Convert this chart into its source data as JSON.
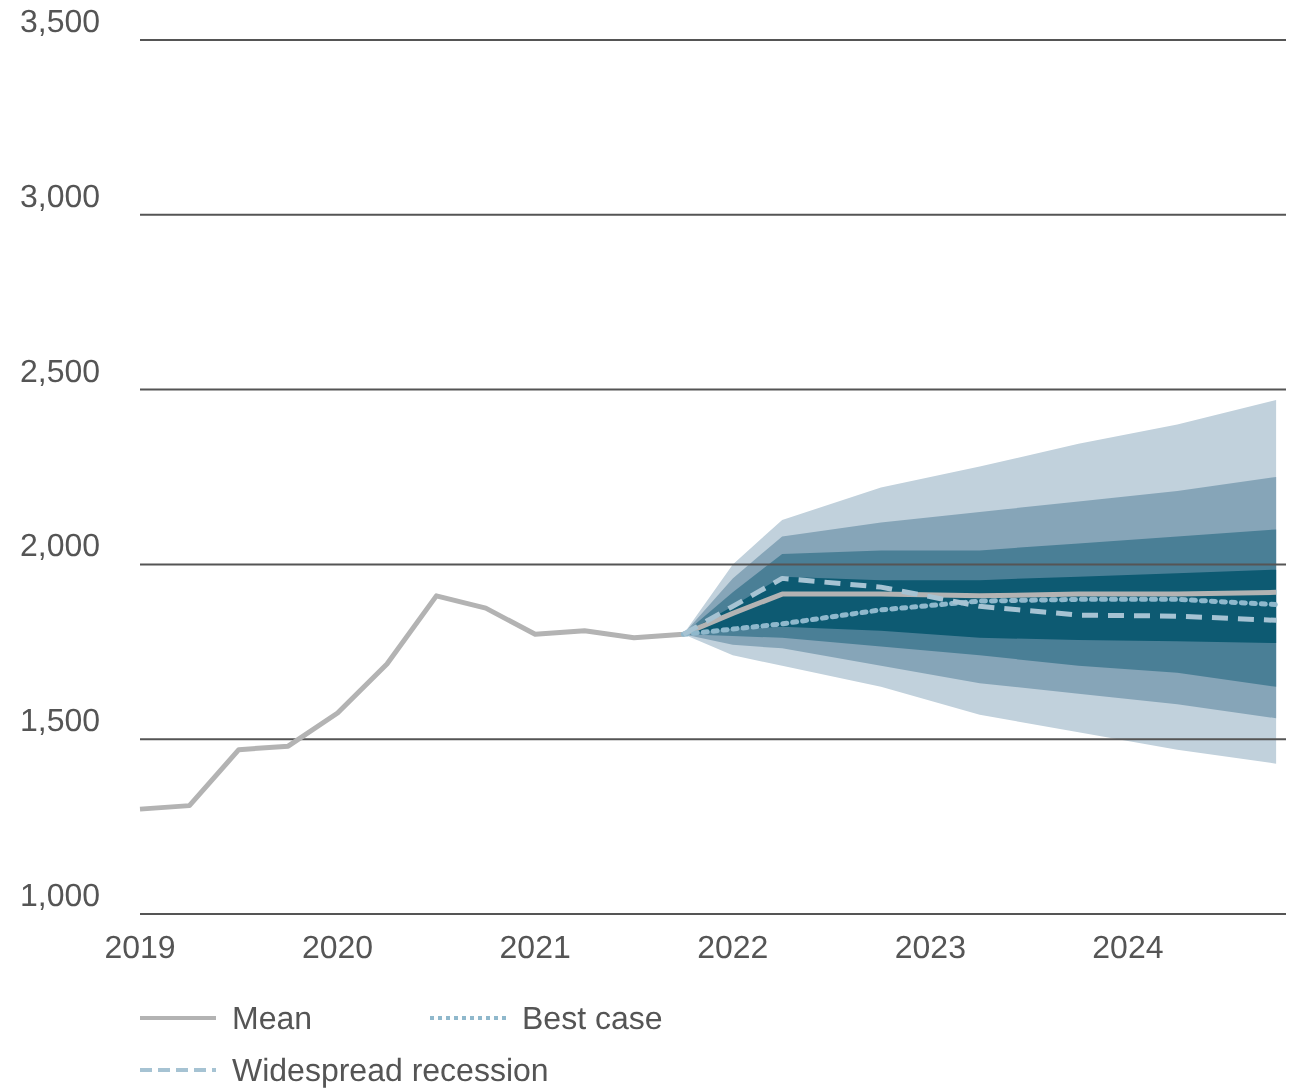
{
  "chart_data": {
    "type": "line",
    "xlim": [
      2019,
      2024.8
    ],
    "ylim": [
      1000,
      3500
    ],
    "xticks": [
      2019,
      2020,
      2021,
      2022,
      2023,
      2024
    ],
    "yticks": [
      {
        "value": 1000,
        "label": "1,000"
      },
      {
        "value": 1500,
        "label": "1,500"
      },
      {
        "value": 2000,
        "label": "2,000"
      },
      {
        "value": 2500,
        "label": "2,500"
      },
      {
        "value": 3000,
        "label": "3,000"
      },
      {
        "value": 3500,
        "label": "3,500"
      }
    ],
    "grid": "y",
    "legend": "bottom",
    "series": [
      {
        "type": "line",
        "color": "#c1d1dc",
        "x": [
          2021.75,
          2022,
          2022.25,
          2022.75,
          2023.25,
          2023.75,
          2024.25,
          2024.75
        ],
        "values": [
          null,
          null,
          null,
          null,
          null,
          null,
          null,
          null
        ],
        "lower": [
          1800,
          1740,
          1710,
          1650,
          1570,
          1520,
          1470,
          1430
        ],
        "upper": [
          1800,
          2000,
          2127,
          2220,
          2280,
          2345,
          2400,
          2470
        ]
      },
      {
        "type": "line",
        "color": "#86a5b8",
        "x": [
          2021.75,
          2022,
          2022.25,
          2022.75,
          2023.25,
          2023.75,
          2024.25,
          2024.75
        ],
        "values": [
          null,
          null,
          null,
          null,
          null,
          null,
          null,
          null
        ],
        "lower": [
          1800,
          1770,
          1760,
          1710,
          1660,
          1630,
          1600,
          1560
        ],
        "upper": [
          1800,
          1960,
          2080,
          2120,
          2150,
          2180,
          2210,
          2250
        ]
      },
      {
        "type": "line",
        "color": "#4a7f96",
        "x": [
          2021.75,
          2022,
          2022.25,
          2022.75,
          2023.25,
          2023.75,
          2024.25,
          2024.75
        ],
        "values": [
          null,
          null,
          null,
          null,
          null,
          null,
          null,
          null
        ],
        "lower": [
          1800,
          1795,
          1790,
          1765,
          1740,
          1710,
          1690,
          1650
        ],
        "upper": [
          1800,
          1920,
          2030,
          2040,
          2040,
          2060,
          2080,
          2100
        ]
      },
      {
        "type": "line",
        "color": "#0d5a72",
        "x": [
          2021.75,
          2022,
          2022.25,
          2022.75,
          2023.25,
          2023.75,
          2024.25,
          2024.75
        ],
        "values": [
          null,
          null,
          null,
          null,
          null,
          null,
          null,
          null
        ],
        "lower": [
          1800,
          1815,
          1822,
          1810,
          1790,
          1784,
          1780,
          1775
        ],
        "upper": [
          1800,
          1880,
          1965,
          1955,
          1955,
          1965,
          1975,
          1985
        ]
      },
      {
        "type": "line",
        "name": "Mean",
        "color": "#b3b3b3",
        "line_style": "solid",
        "x": [
          2019,
          2019.25,
          2019.5,
          2019.75,
          2020,
          2020.25,
          2020.5,
          2020.75,
          2021,
          2021.25,
          2021.5,
          2021.75,
          2022,
          2022.25,
          2022.75,
          2023.25,
          2023.75,
          2024.25,
          2024.75
        ],
        "values": [
          1300,
          1310,
          1470,
          1480,
          1575,
          1715,
          1910,
          1875,
          1800,
          1810,
          1790,
          1800,
          1860,
          1915,
          1915,
          1910,
          1915,
          1915,
          1920
        ]
      },
      {
        "type": "line",
        "name": "Best case",
        "color": "#8fb8cc",
        "line_style": "dotted",
        "x": [
          2021.75,
          2022,
          2022.25,
          2022.75,
          2023.25,
          2023.75,
          2024.25,
          2024.75
        ],
        "values": [
          1800,
          1815,
          1830,
          1870,
          1895,
          1900,
          1900,
          1885
        ]
      },
      {
        "type": "line",
        "name": "Widespread recession",
        "color": "#a6c3d3",
        "line_style": "dashed",
        "x": [
          2021.75,
          2022,
          2022.25,
          2022.75,
          2023.25,
          2023.75,
          2024.25,
          2024.75
        ],
        "values": [
          1800,
          1880,
          1960,
          1935,
          1880,
          1855,
          1852,
          1840
        ]
      }
    ]
  }
}
